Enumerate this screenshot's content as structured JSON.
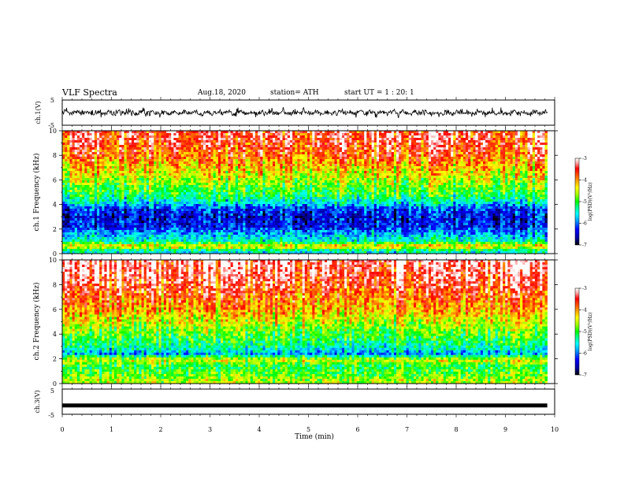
{
  "header": {
    "title": "VLF Spectra",
    "date": "Aug.18, 2020",
    "station": "station= ATH",
    "start": "start UT = 1 : 20: 1"
  },
  "chart_data": [
    {
      "type": "line",
      "panel": "ch1-waveform",
      "ylabel": "ch.1(V)",
      "ylim": [
        -5,
        5
      ],
      "yticks": [
        "5",
        "-5"
      ],
      "xlim": [
        0,
        10
      ],
      "note_values": "noisy waveform, amplitude roughly -3 to 3 V across 0–9.85 min"
    },
    {
      "type": "heatmap",
      "panel": "ch1-spectrogram",
      "ylabel": "ch.1 Frequency (kHz)",
      "ylim": [
        0,
        10
      ],
      "yticks": [
        "0",
        "2",
        "4",
        "6",
        "8",
        "10"
      ],
      "xlim": [
        0,
        10
      ],
      "data_end_min": 9.85,
      "colorbar": {
        "label": "log(PSD)(V²/Hz)",
        "range": [
          -7,
          -3
        ],
        "ticks": [
          "-3",
          "-4",
          "-5",
          "-6",
          "-7"
        ]
      },
      "profile": [
        {
          "freq_khz": 0.2,
          "value": -5.5
        },
        {
          "freq_khz": 0.6,
          "value": -4.2
        },
        {
          "freq_khz": 1.0,
          "value": -5.4
        },
        {
          "freq_khz": 1.6,
          "value": -5.8
        },
        {
          "freq_khz": 2.2,
          "value": -6.3
        },
        {
          "freq_khz": 3.0,
          "value": -6.4
        },
        {
          "freq_khz": 3.6,
          "value": -6.2
        },
        {
          "freq_khz": 4.2,
          "value": -5.5
        },
        {
          "freq_khz": 5.0,
          "value": -5.0
        },
        {
          "freq_khz": 6.0,
          "value": -4.6
        },
        {
          "freq_khz": 7.0,
          "value": -4.2
        },
        {
          "freq_khz": 8.0,
          "value": -3.8
        },
        {
          "freq_khz": 9.0,
          "value": -3.5
        },
        {
          "freq_khz": 10.0,
          "value": -3.4
        }
      ]
    },
    {
      "type": "heatmap",
      "panel": "ch2-spectrogram",
      "ylabel": "ch.2 Frequency (kHz)",
      "ylim": [
        0,
        10
      ],
      "yticks": [
        "0",
        "2",
        "4",
        "6",
        "8",
        "10"
      ],
      "xlim": [
        0,
        10
      ],
      "data_end_min": 9.85,
      "colorbar": {
        "label": "log(PSD)(V²/Hz)",
        "range": [
          -7,
          -3
        ],
        "ticks": [
          "-3",
          "-4",
          "-5",
          "-6",
          "-7"
        ]
      },
      "profile": [
        {
          "freq_khz": 0.2,
          "value": -4.6
        },
        {
          "freq_khz": 0.8,
          "value": -4.9
        },
        {
          "freq_khz": 1.4,
          "value": -5.1
        },
        {
          "freq_khz": 1.9,
          "value": -4.4
        },
        {
          "freq_khz": 2.4,
          "value": -5.8
        },
        {
          "freq_khz": 3.0,
          "value": -5.3
        },
        {
          "freq_khz": 4.0,
          "value": -4.9
        },
        {
          "freq_khz": 5.0,
          "value": -4.5
        },
        {
          "freq_khz": 6.0,
          "value": -4.1
        },
        {
          "freq_khz": 7.0,
          "value": -3.8
        },
        {
          "freq_khz": 8.0,
          "value": -3.5
        },
        {
          "freq_khz": 9.0,
          "value": -3.3
        },
        {
          "freq_khz": 10.0,
          "value": -3.2
        }
      ]
    },
    {
      "type": "line",
      "panel": "ch3-waveform",
      "ylabel": "ch.3(V)",
      "ylim": [
        -5,
        5
      ],
      "yticks": [
        "5",
        "-5"
      ],
      "xlim": [
        0,
        10
      ],
      "level_v": -1.5,
      "xlabel": "Time (min)",
      "xticks": [
        "0",
        "1",
        "2",
        "3",
        "4",
        "5",
        "6",
        "7",
        "8",
        "9",
        "10"
      ]
    }
  ],
  "colors": {
    "frame": "#000000",
    "waveform": "#000000",
    "colormap": [
      "#000000",
      "#0000a0",
      "#0000ff",
      "#00a0ff",
      "#00ffff",
      "#00ff80",
      "#00ff00",
      "#a0ff00",
      "#ffff00",
      "#ffa000",
      "#ff4000",
      "#ff0000",
      "#ffb0b0",
      "#ffffff"
    ]
  }
}
